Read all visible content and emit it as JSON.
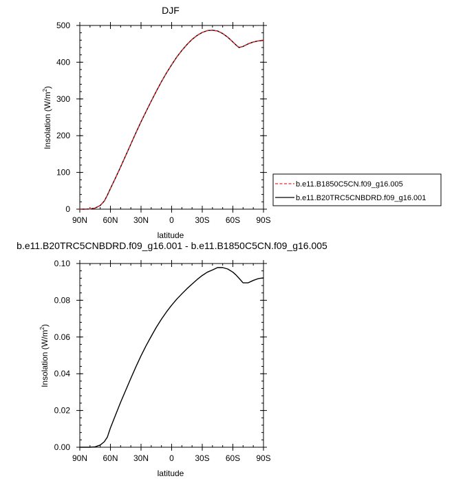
{
  "chart_data": [
    {
      "type": "line",
      "title": "DJF",
      "xlabel": "latitude",
      "ylabel": "Insolation (W/m",
      "ylabel_sup": "2",
      "ylabel_close": ")",
      "xlim": [
        90,
        -90
      ],
      "ylim": [
        0,
        500
      ],
      "x_ticks": [
        90,
        60,
        30,
        0,
        -30,
        -60,
        -90
      ],
      "x_tick_labels": [
        "90N",
        "60N",
        "30N",
        "0",
        "30S",
        "60S",
        "90S"
      ],
      "y_ticks": [
        0,
        100,
        200,
        300,
        400,
        500
      ],
      "y_tick_labels": [
        "0",
        "100",
        "200",
        "300",
        "400",
        "500"
      ],
      "x": [
        90,
        85,
        80,
        75,
        70,
        66,
        63,
        60,
        55,
        50,
        45,
        40,
        35,
        30,
        25,
        20,
        15,
        10,
        5,
        0,
        -5,
        -10,
        -15,
        -20,
        -25,
        -30,
        -35,
        -40,
        -45,
        -50,
        -55,
        -60,
        -63,
        -66,
        -70,
        -75,
        -80,
        -85,
        -90
      ],
      "series": [
        {
          "name": "b.e11.B1850C5CN.f09_g16.005",
          "color": "#e8262a",
          "dash": "dashed",
          "values": [
            0,
            0,
            0.5,
            3,
            10,
            22,
            38,
            56,
            85,
            115,
            146,
            177,
            208,
            238,
            266,
            294,
            321,
            347,
            371,
            393,
            414,
            432,
            448,
            462,
            473,
            481,
            486,
            487,
            485,
            478,
            468,
            455,
            447,
            440,
            443,
            450,
            455,
            458,
            459
          ]
        },
        {
          "name": "b.e11.B20TRC5CNBDRD.f09_g16.001",
          "color": "#000000",
          "dash": "solid",
          "values": [
            0,
            0,
            0.5,
            3,
            10,
            22,
            38,
            56,
            85,
            115,
            146,
            177,
            208,
            238,
            266,
            294,
            321,
            347,
            371,
            393,
            414,
            432,
            448,
            462,
            473,
            481,
            486,
            487,
            485,
            478,
            468,
            455,
            447,
            440,
            443,
            450,
            455,
            458,
            459
          ]
        }
      ],
      "legend": "right"
    },
    {
      "type": "line",
      "title": "b.e11.B20TRC5CNBDRD.f09_g16.001 - b.e11.B1850C5CN.f09_g16.005",
      "xlabel": "latitude",
      "ylabel": "Insolation (W/m",
      "ylabel_sup": "2",
      "ylabel_close": ")",
      "xlim": [
        90,
        -90
      ],
      "ylim": [
        0,
        0.1
      ],
      "x_ticks": [
        90,
        60,
        30,
        0,
        -30,
        -60,
        -90
      ],
      "x_tick_labels": [
        "90N",
        "60N",
        "30N",
        "0",
        "30S",
        "60S",
        "90S"
      ],
      "y_ticks": [
        0,
        0.02,
        0.04,
        0.06,
        0.08,
        0.1
      ],
      "y_tick_labels": [
        "0.00",
        "0.02",
        "0.04",
        "0.06",
        "0.08",
        "0.10"
      ],
      "x": [
        90,
        85,
        80,
        75,
        70,
        66,
        63,
        60,
        55,
        50,
        45,
        40,
        35,
        30,
        25,
        20,
        15,
        10,
        5,
        0,
        -5,
        -10,
        -15,
        -20,
        -25,
        -30,
        -35,
        -40,
        -45,
        -50,
        -55,
        -60,
        -63,
        -66,
        -70,
        -75,
        -80,
        -85,
        -90
      ],
      "series": [
        {
          "color": "#000000",
          "dash": "solid",
          "values": [
            0,
            0,
            0,
            0.0002,
            0.0012,
            0.003,
            0.0055,
            0.0105,
            0.0175,
            0.0245,
            0.031,
            0.0375,
            0.0438,
            0.0498,
            0.0553,
            0.0604,
            0.0653,
            0.0697,
            0.0737,
            0.0773,
            0.0806,
            0.0835,
            0.0863,
            0.0888,
            0.0913,
            0.0935,
            0.0953,
            0.0965,
            0.0978,
            0.0978,
            0.097,
            0.0953,
            0.0938,
            0.092,
            0.0895,
            0.0895,
            0.0908,
            0.0918,
            0.0922
          ]
        }
      ]
    }
  ]
}
